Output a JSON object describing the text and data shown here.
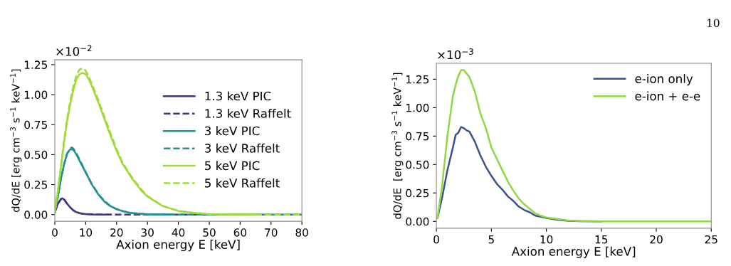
{
  "chart_data": [
    {
      "type": "line",
      "xlabel": "Axion energy E [keV]",
      "ylabel": "dQ/dE [erg cm$^{−3}$ s$^{−1}$ keV$^{−1}$]",
      "annotations": [
        "×10$^{−2}$"
      ],
      "xlim": [
        0,
        80
      ],
      "ylim": [
        -0.056,
        1.29
      ],
      "xticks": [
        0,
        10,
        20,
        30,
        40,
        50,
        60,
        70,
        80
      ],
      "yticks": [
        {
          "value": 0,
          "label": "0.00"
        },
        {
          "value": 0.25,
          "label": "0.25"
        },
        {
          "value": 0.5,
          "label": "0.50"
        },
        {
          "value": 0.75,
          "label": "0.75"
        },
        {
          "value": 1,
          "label": "1.00"
        },
        {
          "value": 1.25,
          "label": "1.25"
        }
      ],
      "grid": false,
      "legend": "right",
      "series": [
        {
          "name": "1.3 keV PIC",
          "color": "#46337e",
          "line_style": "solid",
          "x": [
            0,
            1,
            2,
            2.5,
            3,
            4,
            5,
            6,
            7,
            8,
            10,
            12,
            15,
            18
          ],
          "values": [
            0.02,
            0.09,
            0.13,
            0.135,
            0.125,
            0.09,
            0.06,
            0.035,
            0.02,
            0.012,
            0.004,
            0.001,
            0,
            0
          ]
        },
        {
          "name": "1.3 keV Raffelt",
          "color": "#46337e",
          "line_style": "dashed",
          "x": [
            0,
            1,
            2,
            2.5,
            3,
            4,
            5,
            6,
            8,
            10,
            15,
            30,
            50,
            80
          ],
          "values": [
            0.02,
            0.09,
            0.13,
            0.14,
            0.13,
            0.09,
            0.06,
            0.035,
            0.012,
            0.004,
            0,
            0,
            0,
            0
          ]
        },
        {
          "name": "3 keV PIC",
          "color": "#21918c",
          "line_style": "solid",
          "x": [
            0,
            1,
            2,
            3,
            4,
            5,
            6,
            7,
            8,
            10,
            12,
            14,
            16,
            18,
            20,
            22,
            25,
            30,
            35,
            38
          ],
          "values": [
            0.02,
            0.15,
            0.3,
            0.42,
            0.51,
            0.545,
            0.54,
            0.5,
            0.45,
            0.35,
            0.25,
            0.17,
            0.11,
            0.07,
            0.045,
            0.028,
            0.012,
            0.003,
            0.001,
            0
          ]
        },
        {
          "name": "3 keV Raffelt",
          "color": "#21918c",
          "line_style": "dashed",
          "x": [
            0,
            1,
            2,
            3,
            4,
            5,
            5.5,
            6,
            7,
            8,
            10,
            12,
            14,
            16,
            18,
            20,
            22,
            25,
            30,
            35,
            40,
            60,
            80
          ],
          "values": [
            0.02,
            0.15,
            0.3,
            0.42,
            0.51,
            0.55,
            0.56,
            0.55,
            0.51,
            0.46,
            0.355,
            0.255,
            0.175,
            0.115,
            0.072,
            0.046,
            0.029,
            0.013,
            0.003,
            0.001,
            0,
            0,
            0
          ]
        },
        {
          "name": "5 keV PIC",
          "color": "#a0da39",
          "line_style": "solid",
          "x": [
            0,
            1,
            2,
            3,
            4,
            5,
            6,
            7,
            8,
            9,
            10,
            11,
            12,
            14,
            16,
            18,
            20,
            22,
            25,
            28,
            30,
            35,
            40,
            45,
            50,
            55,
            60,
            65
          ],
          "values": [
            0.02,
            0.2,
            0.4,
            0.6,
            0.78,
            0.92,
            1.04,
            1.13,
            1.17,
            1.18,
            1.17,
            1.13,
            1.07,
            0.94,
            0.8,
            0.66,
            0.53,
            0.42,
            0.3,
            0.2,
            0.15,
            0.07,
            0.03,
            0.013,
            0.005,
            0.002,
            0.001,
            0
          ]
        },
        {
          "name": "5 keV Raffelt",
          "color": "#a0da39",
          "line_style": "dashed",
          "x": [
            0,
            1,
            2,
            3,
            4,
            5,
            6,
            7,
            8,
            9,
            10,
            11,
            12,
            14,
            16,
            18,
            20,
            22,
            25,
            28,
            30,
            35,
            40,
            45,
            50,
            55,
            60,
            70,
            80
          ],
          "values": [
            0.02,
            0.2,
            0.41,
            0.62,
            0.8,
            0.95,
            1.07,
            1.16,
            1.21,
            1.22,
            1.2,
            1.15,
            1.09,
            0.96,
            0.82,
            0.68,
            0.545,
            0.43,
            0.31,
            0.21,
            0.155,
            0.072,
            0.031,
            0.014,
            0.005,
            0.002,
            0.001,
            0,
            0
          ]
        }
      ]
    },
    {
      "type": "line",
      "xlabel": "Axion energy E [keV]",
      "ylabel": "dQ/dE  [erg cm$^{−3}$ s$^{−1}$ keV$^{−1}$]",
      "annotations": [
        "×10$^{−3}$",
        "10"
      ],
      "xlim": [
        0,
        25
      ],
      "ylim": [
        -0.06,
        1.39
      ],
      "xticks": [
        0,
        5,
        10,
        15,
        20,
        25
      ],
      "yticks": [
        {
          "value": 0,
          "label": "0.00"
        },
        {
          "value": 0.25,
          "label": "0.25"
        },
        {
          "value": 0.5,
          "label": "0.50"
        },
        {
          "value": 0.75,
          "label": "0.75"
        },
        {
          "value": 1,
          "label": "1.00"
        },
        {
          "value": 1.25,
          "label": "1.25"
        }
      ],
      "grid": false,
      "legend": "upper right",
      "series": [
        {
          "name": "e-ion only",
          "color": "#3b528b",
          "line_style": "solid",
          "x": [
            0.1,
            0.5,
            1,
            1.5,
            1.75,
            2,
            2.25,
            2.5,
            2.75,
            3,
            3.5,
            4,
            4.5,
            5,
            5.5,
            6,
            6.5,
            7,
            7.5,
            8,
            8.5,
            9,
            9.5,
            10,
            11,
            12,
            13,
            15
          ],
          "values": [
            0.03,
            0.2,
            0.45,
            0.65,
            0.76,
            0.78,
            0.83,
            0.82,
            0.8,
            0.79,
            0.7,
            0.58,
            0.48,
            0.4,
            0.33,
            0.28,
            0.22,
            0.18,
            0.13,
            0.1,
            0.08,
            0.05,
            0.04,
            0.03,
            0.015,
            0.005,
            0.002,
            0
          ]
        },
        {
          "name": "e-ion + e-e",
          "color": "#8fd744",
          "line_style": "solid",
          "x": [
            0.1,
            0.5,
            1,
            1.5,
            1.75,
            2,
            2.25,
            2.5,
            3,
            3.5,
            4,
            4.5,
            5,
            5.5,
            6,
            6.5,
            7,
            7.5,
            8,
            8.5,
            9,
            9.5,
            10,
            11,
            12,
            13,
            15,
            20,
            25
          ],
          "values": [
            0.03,
            0.3,
            0.75,
            1.1,
            1.2,
            1.28,
            1.33,
            1.33,
            1.27,
            1.14,
            0.95,
            0.82,
            0.65,
            0.55,
            0.45,
            0.35,
            0.27,
            0.2,
            0.15,
            0.11,
            0.07,
            0.05,
            0.035,
            0.02,
            0.008,
            0.003,
            0,
            0,
            0
          ]
        }
      ]
    }
  ]
}
